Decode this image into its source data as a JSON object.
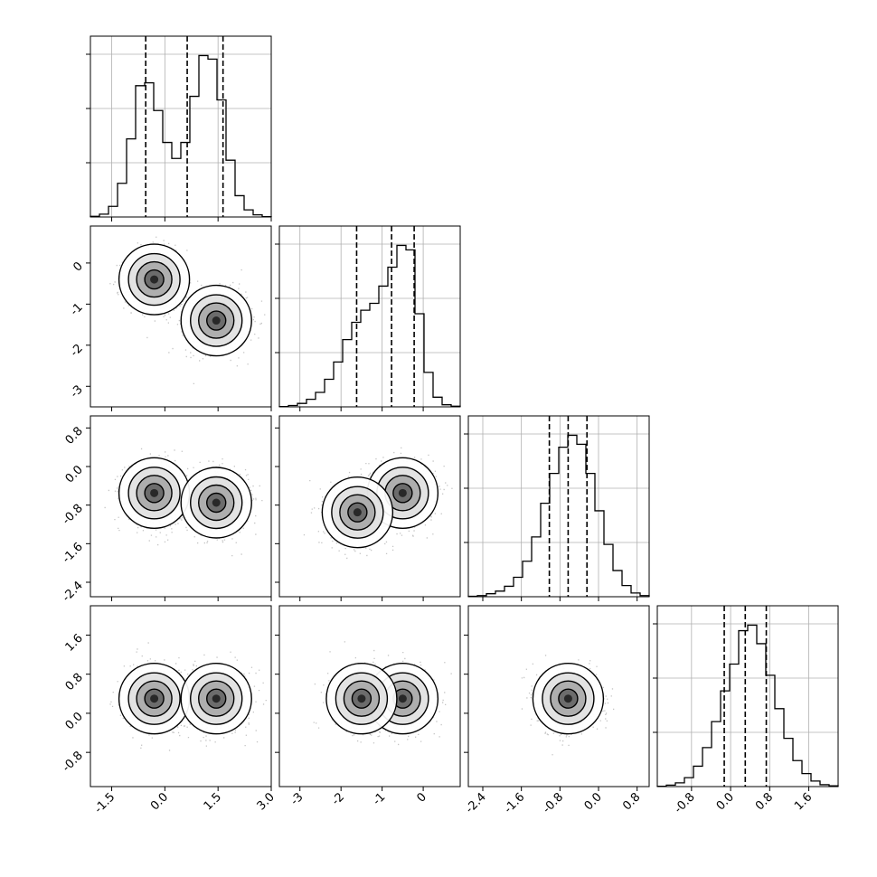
{
  "chart_data": {
    "type": "corner",
    "parameters": 4,
    "grid": true,
    "colors": {
      "line": "#000000",
      "grid": "#b0b0b0",
      "scatter": "#555555",
      "fill": "#000000"
    },
    "ranges": [
      [
        -2.1,
        3.0
      ],
      [
        -3.5,
        0.9
      ],
      [
        -2.7,
        1.05
      ],
      [
        -1.5,
        2.2
      ]
    ],
    "bottom_ticks": [
      [
        "-1.5",
        "0.0",
        "1.5",
        "3.0"
      ],
      [
        "-3",
        "-2",
        "-1",
        "0"
      ],
      [
        "-2.4",
        "-1.6",
        "-0.8",
        "0.0",
        "0.8"
      ],
      [
        "-0.8",
        "0.0",
        "0.8",
        "1.6"
      ]
    ],
    "left_ticks": [
      [],
      [
        "0",
        "-1",
        "-2",
        "-3"
      ],
      [
        "0.8",
        "0.0",
        "-0.8",
        "-1.6",
        "-2.4"
      ],
      [
        "1.6",
        "0.8",
        "0.0",
        "-0.8"
      ]
    ],
    "histograms": [
      {
        "parameter": 1,
        "quantiles": [
          -0.54,
          0.63,
          1.64
        ],
        "bin_edges": [
          -2.1,
          -1.845,
          -1.59,
          -1.335,
          -1.08,
          -0.825,
          -0.57,
          -0.315,
          -0.06,
          0.195,
          0.45,
          0.705,
          0.96,
          1.215,
          1.47,
          1.725,
          1.98,
          2.235,
          2.49,
          2.745,
          3.0
        ],
        "counts": [
          2,
          8,
          30,
          95,
          220,
          370,
          378,
          300,
          210,
          165,
          210,
          340,
          455,
          445,
          330,
          160,
          60,
          20,
          6,
          1
        ]
      },
      {
        "parameter": 2,
        "quantiles": [
          -1.62,
          -0.77,
          -0.22
        ],
        "bin_edges": [
          -3.5,
          -3.28,
          -3.06,
          -2.84,
          -2.62,
          -2.4,
          -2.18,
          -1.96,
          -1.74,
          -1.52,
          -1.3,
          -1.08,
          -0.86,
          -0.64,
          -0.42,
          -0.2,
          0.02,
          0.24,
          0.46,
          0.68,
          0.9
        ],
        "counts": [
          1,
          4,
          10,
          22,
          42,
          80,
          130,
          195,
          245,
          280,
          300,
          350,
          405,
          468,
          455,
          270,
          100,
          28,
          6,
          2
        ]
      },
      {
        "parameter": 3,
        "quantiles": [
          -1.02,
          -0.63,
          -0.24
        ],
        "bin_edges": [
          -2.7,
          -2.5125,
          -2.325,
          -2.1375,
          -1.95,
          -1.7625,
          -1.575,
          -1.3875,
          -1.2,
          -1.0125,
          -0.825,
          -0.6375,
          -0.45,
          -0.2625,
          -0.075,
          0.1125,
          0.3,
          0.4875,
          0.675,
          0.8625,
          1.05
        ],
        "counts": [
          1,
          3,
          8,
          15,
          28,
          52,
          95,
          160,
          250,
          330,
          400,
          432,
          408,
          330,
          230,
          140,
          70,
          30,
          10,
          3
        ]
      },
      {
        "parameter": 4,
        "quantiles": [
          -0.13,
          0.3,
          0.73
        ],
        "bin_edges": [
          -1.5,
          -1.315,
          -1.13,
          -0.945,
          -0.76,
          -0.575,
          -0.39,
          -0.205,
          -0.02,
          0.165,
          0.35,
          0.535,
          0.72,
          0.905,
          1.09,
          1.275,
          1.46,
          1.645,
          1.83,
          2.015,
          2.2
        ],
        "counts": [
          1,
          4,
          10,
          24,
          55,
          105,
          175,
          258,
          330,
          420,
          435,
          385,
          300,
          210,
          130,
          70,
          35,
          15,
          5,
          2
        ]
      }
    ],
    "joint_distributions": [
      {
        "x_parameter": 1,
        "y_parameter": 2,
        "modes": [
          [
            -0.3,
            -0.4
          ],
          [
            1.45,
            -1.4
          ]
        ]
      },
      {
        "x_parameter": 1,
        "y_parameter": 3,
        "modes": [
          [
            -0.3,
            -0.55
          ],
          [
            1.45,
            -0.75
          ]
        ]
      },
      {
        "x_parameter": 2,
        "y_parameter": 3,
        "modes": [
          [
            -0.5,
            -0.55
          ],
          [
            -1.6,
            -0.95
          ]
        ]
      },
      {
        "x_parameter": 1,
        "y_parameter": 4,
        "modes": [
          [
            -0.3,
            0.3
          ],
          [
            1.45,
            0.3
          ]
        ]
      },
      {
        "x_parameter": 2,
        "y_parameter": 4,
        "modes": [
          [
            -0.5,
            0.3
          ],
          [
            -1.5,
            0.3
          ]
        ]
      },
      {
        "x_parameter": 3,
        "y_parameter": 4,
        "modes": [
          [
            -0.63,
            0.3
          ]
        ]
      }
    ]
  }
}
